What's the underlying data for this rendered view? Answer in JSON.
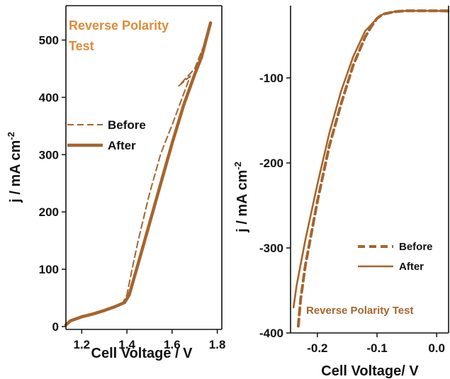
{
  "chart_data": [
    {
      "type": "line",
      "title": "Reverse Polarity Test",
      "xlabel": "Cell Voltage / V",
      "ylabel": "j / mA cm",
      "ylabel_sup": "-2",
      "xlim": [
        1.13,
        1.82
      ],
      "ylim": [
        -5,
        560
      ],
      "xticks": [
        1.2,
        1.4,
        1.6,
        1.8
      ],
      "xtick_labels": [
        "1.2",
        "1.4",
        "1.6",
        "1.8"
      ],
      "yticks": [
        0,
        100,
        200,
        300,
        400,
        500
      ],
      "ytick_labels": [
        "0",
        "100",
        "200",
        "300",
        "400",
        "500"
      ],
      "grid": false,
      "legend": "left-middle",
      "colors": {
        "title": "#e08b3a",
        "curve": "#a5652e",
        "axis": "#111111"
      },
      "series": [
        {
          "name": "Before",
          "style": "dashed",
          "x": [
            1.13,
            1.15,
            1.2,
            1.25,
            1.3,
            1.35,
            1.38,
            1.4,
            1.42,
            1.45,
            1.5,
            1.55,
            1.6,
            1.65,
            1.68,
            1.63,
            1.7,
            1.75,
            1.77
          ],
          "y": [
            3,
            10,
            17,
            22,
            28,
            35,
            40,
            55,
            95,
            150,
            232,
            302,
            352,
            405,
            437,
            420,
            450,
            500,
            530
          ]
        },
        {
          "name": "After",
          "style": "solid",
          "x": [
            1.13,
            1.15,
            1.2,
            1.25,
            1.3,
            1.35,
            1.39,
            1.41,
            1.45,
            1.5,
            1.55,
            1.6,
            1.65,
            1.7,
            1.73,
            1.75,
            1.77
          ],
          "y": [
            3,
            10,
            17,
            22,
            28,
            35,
            42,
            55,
            110,
            180,
            250,
            320,
            385,
            440,
            470,
            500,
            530
          ]
        }
      ]
    },
    {
      "type": "line",
      "title": "Reverse Polarity Test",
      "xlabel": "Cell Voltage/ V",
      "ylabel": "j / mA cm",
      "ylabel_sup": "-2",
      "xlim": [
        -0.245,
        0.02
      ],
      "ylim": [
        -400,
        -15
      ],
      "xticks": [
        -0.2,
        -0.1,
        0.0
      ],
      "xtick_labels": [
        "-0.2",
        "-0.1",
        "0.0"
      ],
      "yticks": [
        -100,
        -200,
        -300,
        -400
      ],
      "ytick_labels": [
        "-100",
        "-200",
        "-300",
        "-400"
      ],
      "grid": false,
      "legend": "right-middle",
      "colors": {
        "title": "#a5652e",
        "curve": "#a5652e",
        "axis": "#111111"
      },
      "series": [
        {
          "name": "Before",
          "style": "dashed",
          "x": [
            -0.232,
            -0.228,
            -0.22,
            -0.2,
            -0.18,
            -0.16,
            -0.14,
            -0.12,
            -0.11,
            -0.1,
            -0.09,
            -0.07,
            -0.05,
            -0.02,
            0.0,
            0.02
          ],
          "y": [
            -392,
            -360,
            -320,
            -245,
            -180,
            -130,
            -85,
            -52,
            -40,
            -30,
            -25,
            -22,
            -21,
            -21,
            -21,
            -21
          ]
        },
        {
          "name": "After",
          "style": "solid",
          "x": [
            -0.24,
            -0.235,
            -0.22,
            -0.2,
            -0.18,
            -0.16,
            -0.14,
            -0.12,
            -0.1,
            -0.09,
            -0.07,
            -0.05,
            -0.02,
            0.0,
            0.02
          ],
          "y": [
            -370,
            -345,
            -290,
            -225,
            -165,
            -115,
            -75,
            -45,
            -30,
            -25,
            -22,
            -21,
            -21,
            -21,
            -22
          ]
        }
      ]
    }
  ]
}
